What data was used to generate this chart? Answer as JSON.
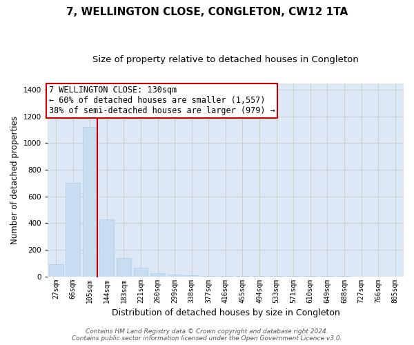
{
  "title": "7, WELLINGTON CLOSE, CONGLETON, CW12 1TA",
  "subtitle": "Size of property relative to detached houses in Congleton",
  "xlabel": "Distribution of detached houses by size in Congleton",
  "ylabel": "Number of detached properties",
  "categories": [
    "27sqm",
    "66sqm",
    "105sqm",
    "144sqm",
    "183sqm",
    "221sqm",
    "260sqm",
    "299sqm",
    "338sqm",
    "377sqm",
    "416sqm",
    "455sqm",
    "494sqm",
    "533sqm",
    "571sqm",
    "610sqm",
    "649sqm",
    "688sqm",
    "727sqm",
    "766sqm",
    "805sqm"
  ],
  "values": [
    90,
    700,
    1120,
    430,
    140,
    65,
    25,
    12,
    8,
    5,
    3,
    2,
    2,
    1,
    1,
    1,
    1,
    1,
    0,
    0,
    0
  ],
  "bar_color": "#c8ddf0",
  "bar_edgecolor": "#aacce8",
  "grid_color": "#cccccc",
  "background_color": "#dce8f5",
  "annotation_box_edgecolor": "#cc0000",
  "annotation_text_line1": "7 WELLINGTON CLOSE: 130sqm",
  "annotation_text_line2": "← 60% of detached houses are smaller (1,557)",
  "annotation_text_line3": "38% of semi-detached houses are larger (979) →",
  "footer": "Contains HM Land Registry data © Crown copyright and database right 2024.\nContains public sector information licensed under the Open Government Licence v3.0.",
  "ylim": [
    0,
    1450
  ],
  "yticks": [
    0,
    200,
    400,
    600,
    800,
    1000,
    1200,
    1400
  ],
  "title_fontsize": 11,
  "subtitle_fontsize": 9.5,
  "annotation_fontsize": 8.5,
  "tick_fontsize": 7,
  "ylabel_fontsize": 8.5,
  "xlabel_fontsize": 9,
  "footer_fontsize": 6.5,
  "red_line_index": 2
}
